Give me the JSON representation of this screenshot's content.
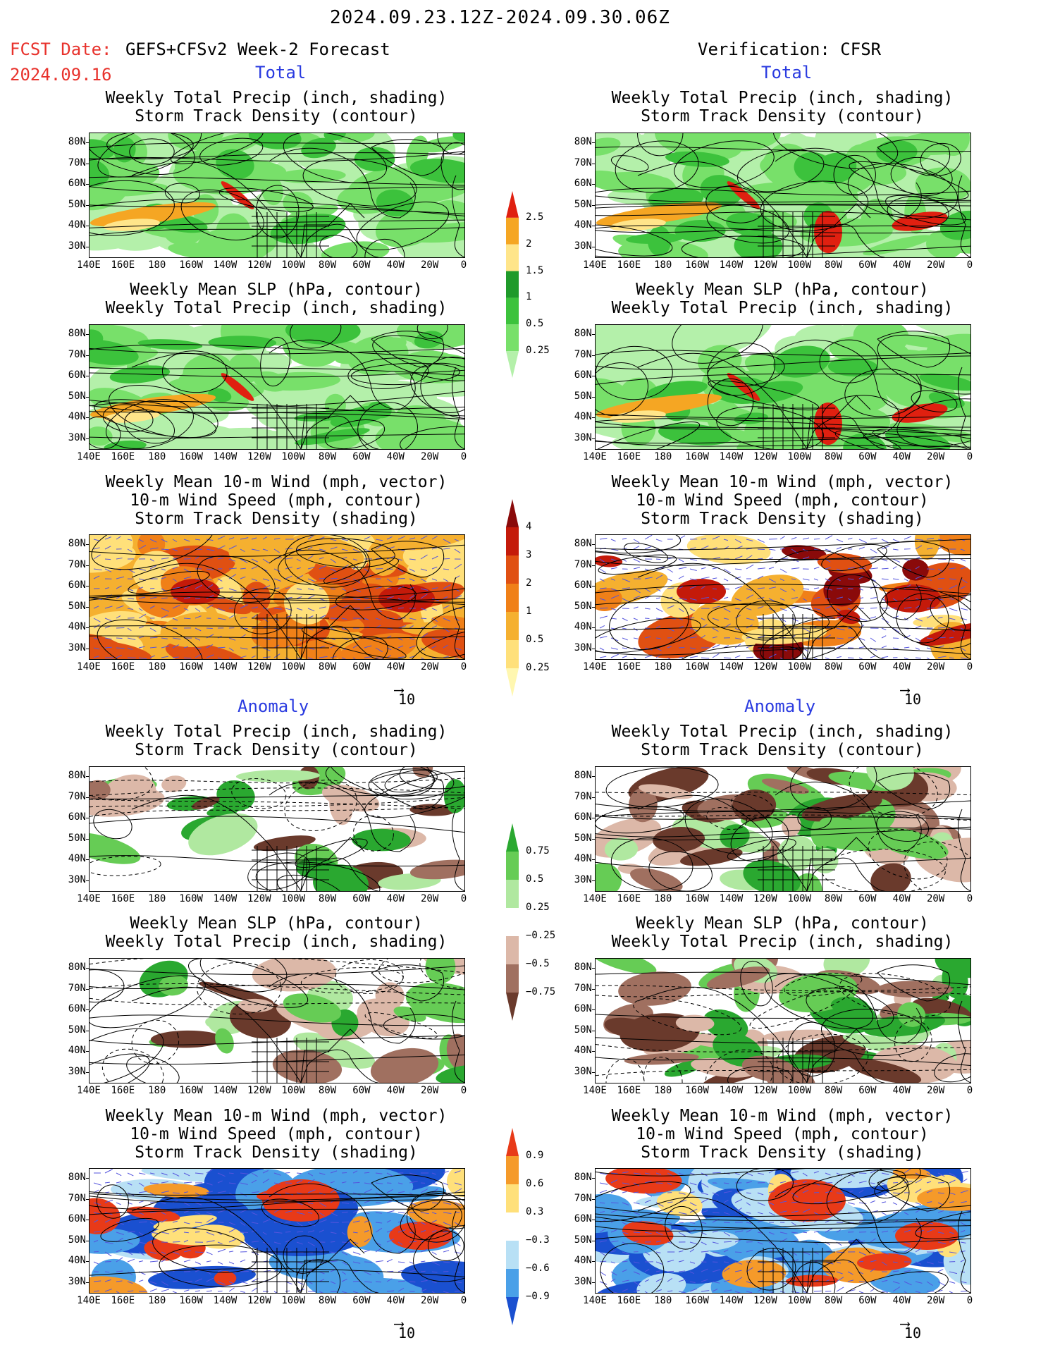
{
  "header": {
    "period": "2024.09.23.12Z-2024.09.30.06Z",
    "fcst_date_label": "FCST Date:",
    "fcst_model": "GEFS+CFSv2 Week-2 Forecast",
    "fcst_date": "2024.09.16",
    "verification": "Verification: CFSR"
  },
  "sections": {
    "total": "Total",
    "anomaly": "Anomaly"
  },
  "titles": {
    "precip_storm": [
      "Weekly Total Precip (inch, shading)",
      "Storm Track Density (contour)"
    ],
    "slp_precip": [
      "Weekly Mean SLP (hPa, contour)",
      "Weekly Total Precip (inch, shading)"
    ],
    "wind_storm": [
      "Weekly Mean 10-m Wind (mph, vector)",
      "10-m Wind Speed (mph, contour)",
      "Storm Track Density (shading)"
    ]
  },
  "axes": {
    "lat": [
      "80N",
      "70N",
      "60N",
      "50N",
      "40N",
      "30N"
    ],
    "lon": [
      "140E",
      "160E",
      "180",
      "160W",
      "140W",
      "120W",
      "100W",
      "80W",
      "60W",
      "40W",
      "20W",
      "0"
    ]
  },
  "vector_ref": "10",
  "colorbars": {
    "precip_total": {
      "labels": [
        "0.25",
        "0.5",
        "1",
        "1.5",
        "2",
        "2.5"
      ],
      "colors": [
        "#b4f0aa",
        "#78e06a",
        "#3cc23c",
        "#1f9a2a",
        "#ffe58a",
        "#f5a623",
        "#e02010"
      ]
    },
    "storm_total": {
      "labels": [
        "0.25",
        "0.5",
        "1",
        "2",
        "3",
        "4"
      ],
      "colors": [
        "#fff7b0",
        "#ffe07a",
        "#f5b030",
        "#f08018",
        "#e05012",
        "#c41a0a",
        "#8a0a0a"
      ]
    },
    "precip_anom": {
      "labels": [
        "0.75",
        "0.5",
        "0.25",
        "−0.25",
        "−0.5",
        "−0.75"
      ],
      "colors": [
        "#2aa830",
        "#66cc55",
        "#b0e8a0",
        "#ffffff",
        "#dcb8a8",
        "#a07060",
        "#6a3a2c"
      ]
    },
    "storm_anom": {
      "labels": [
        "0.9",
        "0.6",
        "0.3",
        "−0.3",
        "−0.6",
        "−0.9"
      ],
      "colors": [
        "#e83a18",
        "#f59a2a",
        "#ffe07a",
        "#ffffff",
        "#b8e0f5",
        "#4aa0e8",
        "#1a50d0"
      ]
    }
  },
  "panel_colors": {
    "land_line": "#000000",
    "wind_vector": "#5555dd",
    "precip_green": "#3cc23c",
    "storm_orange": "#f0901e"
  }
}
